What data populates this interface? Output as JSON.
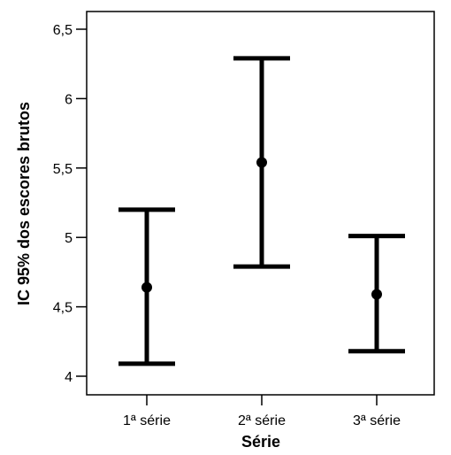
{
  "chart_data": {
    "type": "errorbar",
    "title": "",
    "xlabel": "Série",
    "ylabel": "IC 95% dos escores brutos",
    "ylim": [
      3.95,
      6.62
    ],
    "y_ticks": [
      4,
      4.5,
      5,
      5.5,
      6,
      6.5
    ],
    "y_tick_labels": [
      "4",
      "4,5",
      "5",
      "5,5",
      "6",
      "6,5"
    ],
    "categories": [
      "1ª série",
      "2ª série",
      "3ª série"
    ],
    "mean": [
      4.64,
      5.54,
      4.59
    ],
    "lower": [
      4.09,
      4.79,
      4.18
    ],
    "upper": [
      5.2,
      6.29,
      5.01
    ],
    "grid": false,
    "colors": {
      "marks": "#000000",
      "background": "#ffffff"
    }
  }
}
